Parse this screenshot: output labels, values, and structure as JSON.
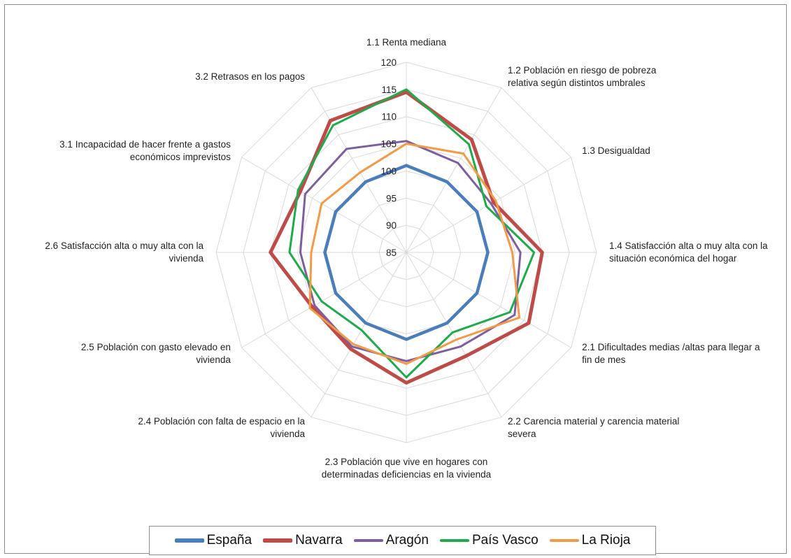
{
  "chart_data": {
    "type": "radar",
    "categories": [
      "1.1 Renta mediana",
      "1.2 Población en riesgo de pobreza relativa según distintos umbrales",
      "1.3 Desigualdad",
      "1.4 Satisfacción alta o muy alta con la situación económica del hogar",
      "2.1 Dificultades medias /altas para llegar a fin de mes",
      "2.2 Carencia material y carencia material severa",
      "2.3 Población que vive en hogares con determinadas deficiencias en la vivienda",
      "2.4 Población con falta de espacio en la vivienda",
      "2.5 Población con gasto elevado en vivienda",
      "2.6 Satisfacción alta o muy alta con la vivienda",
      "3.1 Incapacidad de hacer frente a gastos económicos imprevistos",
      "3.2 Retrasos en los pagos"
    ],
    "category_lines": [
      [
        "1.1 Renta mediana"
      ],
      [
        "1.2 Población en riesgo de pobreza",
        "relativa según distintos umbrales"
      ],
      [
        "1.3 Desigualdad"
      ],
      [
        "1.4 Satisfacción alta o muy alta con la",
        "situación económica del hogar"
      ],
      [
        "2.1 Dificultades medias /altas para llegar a",
        "fin de mes"
      ],
      [
        "2.2 Carencia material y carencia material",
        "severa"
      ],
      [
        "2.3 Población que vive en hogares con",
        "determinadas deficiencias en la vivienda"
      ],
      [
        "2.4 Población con falta de espacio en la",
        "vivienda"
      ],
      [
        "2.5 Población con gasto elevado en",
        "vivienda"
      ],
      [
        "2.6 Satisfacción alta o muy alta con la",
        "vivienda"
      ],
      [
        "3.1 Incapacidad de hacer frente a gastos",
        "económicos imprevistos"
      ],
      [
        "3.2 Retrasos en los pagos"
      ]
    ],
    "rlim": [
      85,
      120
    ],
    "ticks": [
      85,
      90,
      95,
      100,
      105,
      110,
      115,
      120
    ],
    "series": [
      {
        "name": "España",
        "color": "#4a7ebb",
        "width": 4.5,
        "values": [
          101,
          100,
          100,
          100,
          100,
          100,
          101,
          100,
          100,
          100,
          100,
          100
        ]
      },
      {
        "name": "Navarra",
        "color": "#be4b48",
        "width": 5,
        "values": [
          114.5,
          109,
          103.5,
          110,
          111,
          107,
          109,
          105.5,
          105,
          110,
          107.5,
          113
        ]
      },
      {
        "name": "Aragón",
        "color": "#7d5fa0",
        "width": 3,
        "values": [
          105.5,
          104,
          103,
          106,
          108,
          105,
          105,
          105,
          104.5,
          104.5,
          106.5,
          107
        ]
      },
      {
        "name": "País Vasco",
        "color": "#1faa4c",
        "width": 3,
        "values": [
          115,
          108,
          102,
          108.5,
          107,
          102,
          108,
          101.5,
          103,
          106.5,
          108,
          112
        ]
      },
      {
        "name": "La Rioja",
        "color": "#f39a46",
        "width": 3,
        "values": [
          105,
          106,
          104,
          104.5,
          109,
          103.5,
          105.5,
          104.5,
          105.5,
          102.5,
          103,
          102
        ]
      }
    ],
    "grid": true,
    "legend_position": "bottom",
    "title": ""
  }
}
